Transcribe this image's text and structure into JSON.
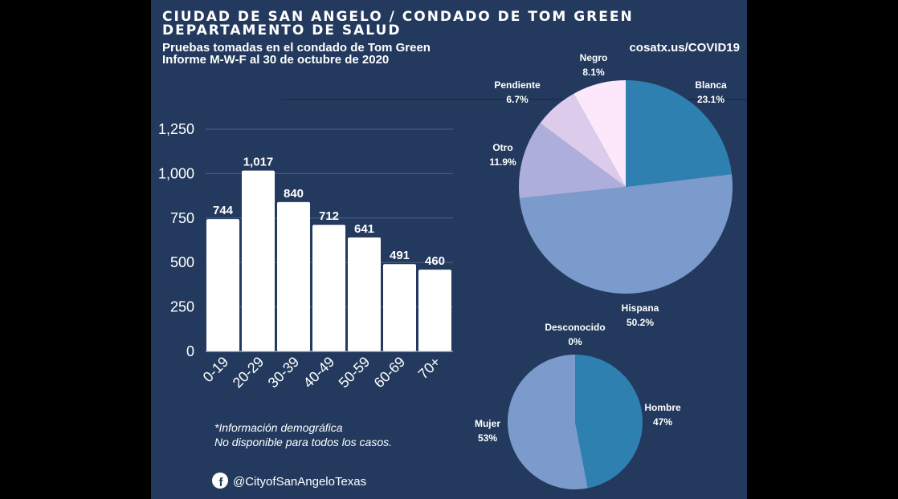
{
  "header": {
    "title_line1": "CIUDAD DE SAN ANGELO / CONDADO DE TOM GREEN",
    "title_line2": "DEPARTAMENTO DE SALUD",
    "subtitle_line1": "Pruebas tomadas en el condado de Tom Green",
    "subtitle_line2": "Informe M-W-F al 30 de octubre de 2020",
    "website": "cosatx.us/COVID19"
  },
  "footer": {
    "note_line1": "*Información demográfica",
    "note_line2": "No disponible para todos los casos.",
    "social_handle": "@CityofSanAngeloTexas",
    "social_icon": "facebook-icon"
  },
  "colors": {
    "background": "#233a5e",
    "bar": "#ffffff"
  },
  "chart_data": [
    {
      "type": "bar",
      "categories": [
        "0-19",
        "20-29",
        "30-39",
        "40-49",
        "50-59",
        "60-69",
        "70+"
      ],
      "values": [
        744,
        1017,
        840,
        712,
        641,
        491,
        460
      ],
      "value_labels": [
        "744",
        "1,017",
        "840",
        "712",
        "641",
        "491",
        "460"
      ],
      "ylim": [
        0,
        1250
      ],
      "yticks": [
        "0",
        "250",
        "500",
        "750",
        "1,000",
        "1,250"
      ],
      "grid": true
    },
    {
      "type": "pie",
      "slices": [
        {
          "label": "Blanca",
          "pct_label": "23.1%",
          "value": 23.1,
          "color": "#2e80b1"
        },
        {
          "label": "Hispana",
          "pct_label": "50.2%",
          "value": 50.2,
          "color": "#7b9bcc"
        },
        {
          "label": "Otro",
          "pct_label": "11.9%",
          "value": 11.9,
          "color": "#adaedb"
        },
        {
          "label": "Pendiente",
          "pct_label": "6.7%",
          "value": 6.7,
          "color": "#dccbea"
        },
        {
          "label": "Negro",
          "pct_label": "8.1%",
          "value": 8.1,
          "color": "#fde8fb"
        }
      ]
    },
    {
      "type": "pie",
      "slices": [
        {
          "label": "Hombre",
          "pct_label": "47%",
          "value": 47,
          "color": "#2e80b1"
        },
        {
          "label": "Mujer",
          "pct_label": "53%",
          "value": 53,
          "color": "#7b9bcc"
        },
        {
          "label": "Desconocido",
          "pct_label": "0%",
          "value": 0,
          "color": "#adaedb"
        }
      ]
    }
  ]
}
